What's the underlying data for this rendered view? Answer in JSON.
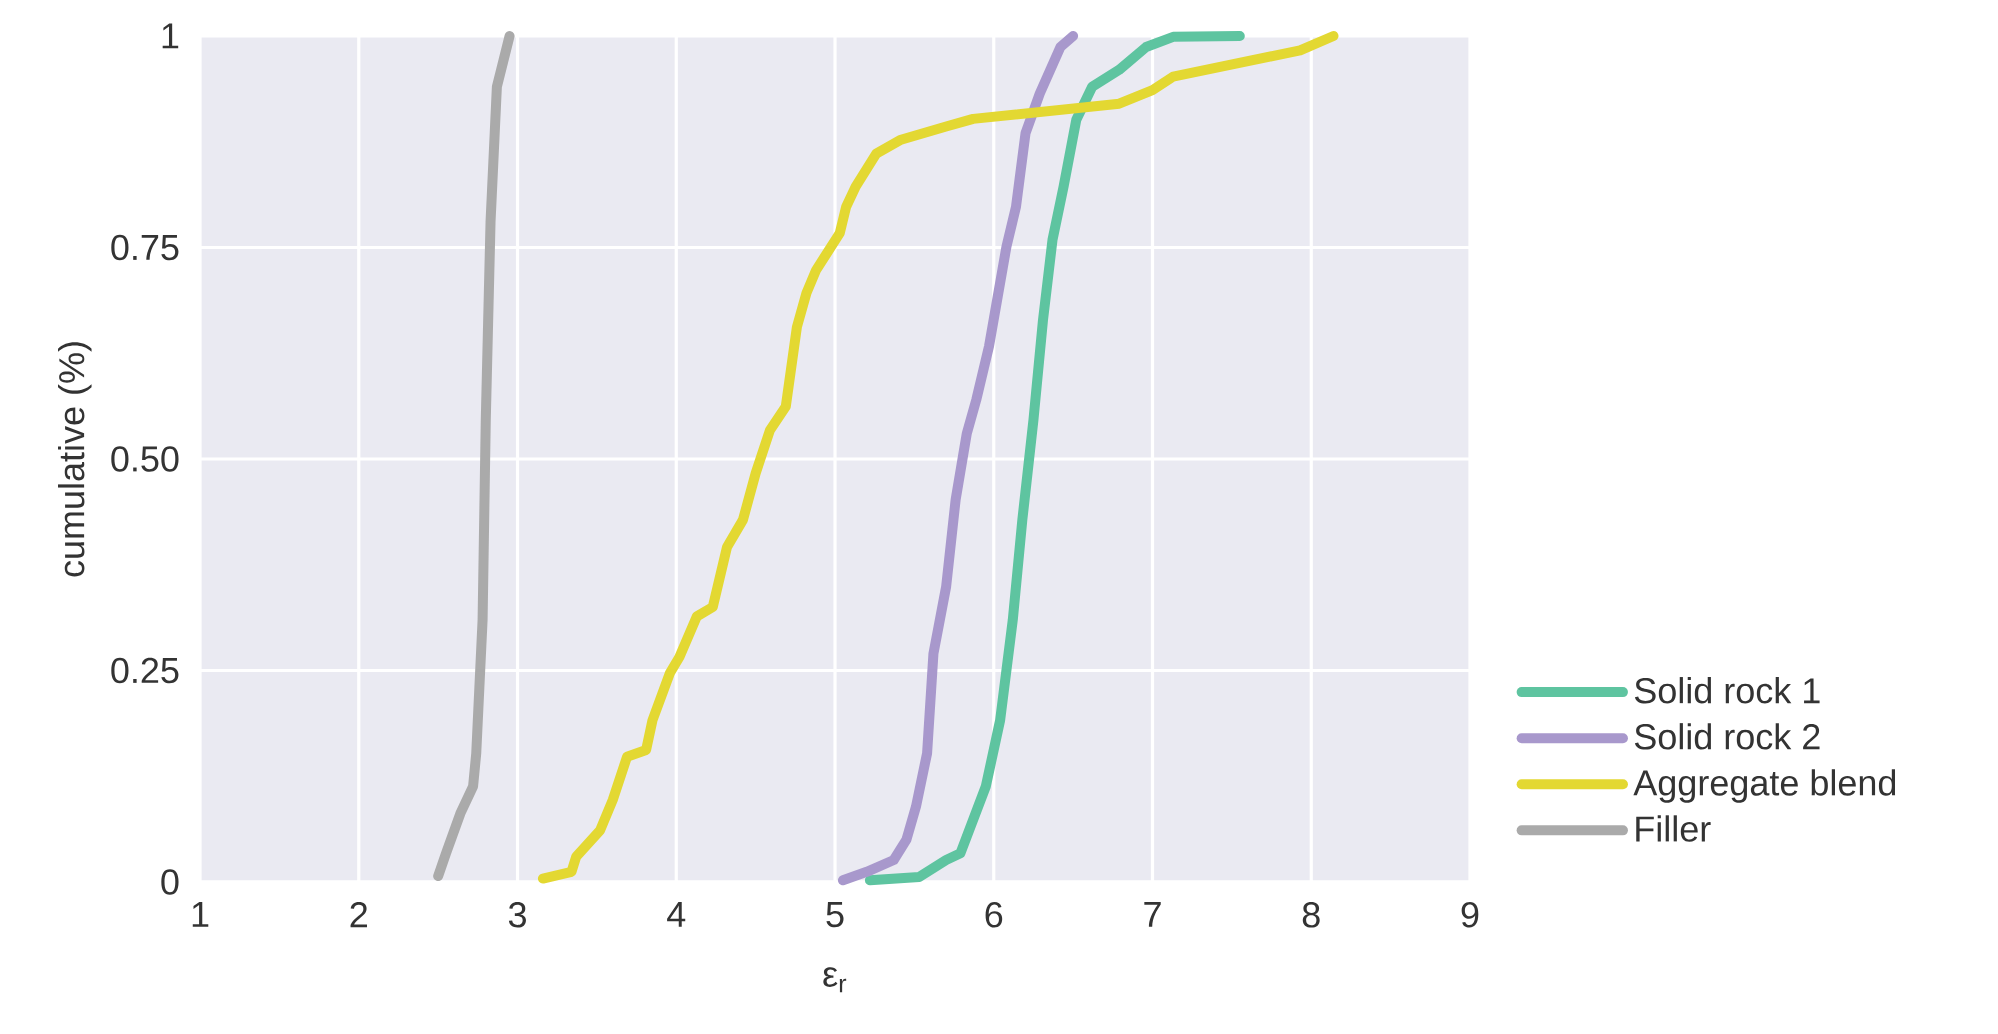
{
  "chart_data": {
    "type": "line",
    "xlabel": "ε$_{r}$",
    "ylabel": "cumulative (%)",
    "xlim": [
      1,
      9
    ],
    "ylim": [
      0,
      1
    ],
    "xticks": [
      1,
      2,
      3,
      4,
      5,
      6,
      7,
      8,
      9
    ],
    "yticks": [
      0,
      {
        "value": 0.25,
        "label": "0.25"
      },
      {
        "value": 0.5,
        "label": "0.50"
      },
      {
        "value": 0.75,
        "label": "0.75"
      },
      1
    ],
    "grid": true,
    "legend": "right",
    "line_style": "solid",
    "series": [
      {
        "name": "Solid rock 1",
        "color": "#5ec4a0",
        "x": [
          5.22,
          5.53,
          5.7,
          5.79,
          5.95,
          6.04,
          6.12,
          6.18,
          6.25,
          6.31,
          6.37,
          6.44,
          6.52,
          6.62,
          6.79,
          6.96,
          7.13,
          7.55
        ],
        "values": [
          0.002,
          0.006,
          0.026,
          0.034,
          0.113,
          0.191,
          0.31,
          0.428,
          0.546,
          0.664,
          0.759,
          0.822,
          0.901,
          0.94,
          0.96,
          0.987,
          0.999,
          1.0
        ]
      },
      {
        "name": "Solid rock 2",
        "color": "#a898cc",
        "x": [
          5.05,
          5.2,
          5.37,
          5.45,
          5.51,
          5.58,
          5.62,
          5.7,
          5.76,
          5.83,
          5.89,
          5.97,
          6.08,
          6.14,
          6.2,
          6.29,
          6.42,
          6.5
        ],
        "values": [
          0.002,
          0.012,
          0.026,
          0.05,
          0.089,
          0.152,
          0.27,
          0.349,
          0.452,
          0.53,
          0.57,
          0.633,
          0.751,
          0.798,
          0.885,
          0.932,
          0.987,
          1.0
        ]
      },
      {
        "name": "Aggregate blend",
        "color": "#e3d832",
        "x": [
          3.16,
          3.34,
          3.37,
          3.52,
          3.6,
          3.69,
          3.81,
          3.85,
          3.96,
          4.02,
          4.13,
          4.23,
          4.32,
          4.42,
          4.5,
          4.59,
          4.69,
          4.76,
          4.82,
          4.88,
          5.03,
          5.07,
          5.13,
          5.26,
          5.41,
          5.7,
          5.87,
          6.79,
          7.0,
          7.13,
          7.93,
          8.14
        ],
        "values": [
          0.004,
          0.012,
          0.03,
          0.061,
          0.097,
          0.148,
          0.156,
          0.191,
          0.247,
          0.266,
          0.314,
          0.325,
          0.396,
          0.428,
          0.483,
          0.534,
          0.562,
          0.656,
          0.696,
          0.723,
          0.767,
          0.798,
          0.822,
          0.861,
          0.877,
          0.893,
          0.902,
          0.92,
          0.936,
          0.952,
          0.983,
          1.0
        ]
      },
      {
        "name": "Filler",
        "color": "#aaaaaa",
        "x": [
          2.5,
          2.55,
          2.64,
          2.72,
          2.74,
          2.78,
          2.8,
          2.83,
          2.87,
          2.95
        ],
        "values": [
          0.007,
          0.034,
          0.081,
          0.113,
          0.152,
          0.31,
          0.546,
          0.78,
          0.94,
          1.0
        ]
      }
    ]
  }
}
